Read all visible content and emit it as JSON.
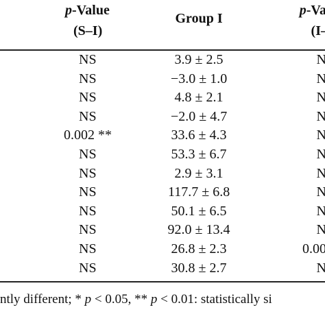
{
  "table": {
    "header": [
      [
        "p-Value",
        "(S–I)"
      ],
      [
        "Group I"
      ],
      [
        "p-Va",
        "(I–"
      ]
    ],
    "rows": [
      [
        "NS",
        "3.9 ± 2.5",
        "N"
      ],
      [
        "NS",
        "−3.0 ± 1.0",
        "N"
      ],
      [
        "NS",
        "4.8 ± 2.1",
        "N"
      ],
      [
        "NS",
        "−2.0 ± 4.7",
        "N"
      ],
      [
        "0.002 **",
        "33.6 ± 4.3",
        "N"
      ],
      [
        "NS",
        "53.3 ± 6.7",
        "N"
      ],
      [
        "NS",
        "2.9 ± 3.1",
        "N"
      ],
      [
        "NS",
        "117.7 ± 6.8",
        "N"
      ],
      [
        "NS",
        "50.1 ± 6.5",
        "N"
      ],
      [
        "NS",
        "92.0 ± 13.4",
        "N"
      ],
      [
        "NS",
        "26.8 ± 2.3",
        "0.00"
      ],
      [
        "NS",
        "30.8 ± 2.7",
        "N"
      ]
    ],
    "footnote": "ntly different; * p < 0.05, ** p < 0.01: statistically si"
  }
}
